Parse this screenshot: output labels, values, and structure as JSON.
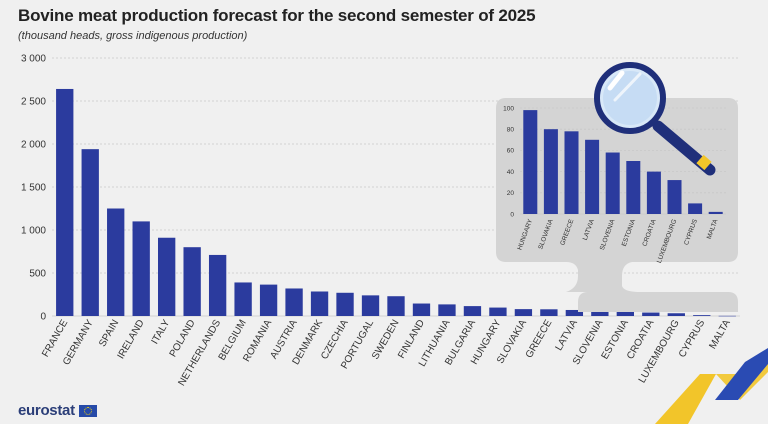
{
  "title": "Bovine meat production forecast for the second semester of 2025",
  "subtitle": "(thousand heads, gross indigenous production)",
  "brand": "eurostat",
  "colors": {
    "bar": "#2b3b9e",
    "background": "#f0f0f0",
    "grid": "#c8c8c8",
    "inset_panel": "#d4d4d4",
    "accent_yellow": "#f2c52a",
    "accent_blue": "#2a4bb3"
  },
  "chart_data": [
    {
      "type": "bar",
      "categories": [
        "FRANCE",
        "GERMANY",
        "SPAIN",
        "IRELAND",
        "ITALY",
        "POLAND",
        "NETHERLANDS",
        "BELGIUM",
        "ROMANIA",
        "AUSTRIA",
        "DENMARK",
        "CZECHIA",
        "PORTUGAL",
        "SWEDEN",
        "FINLAND",
        "LITHUANIA",
        "BULGARIA",
        "HUNGARY",
        "SLOVAKIA",
        "GREECE",
        "LATVIA",
        "SLOVENIA",
        "ESTONIA",
        "CROATIA",
        "LUXEMBOURG",
        "CYPRUS",
        "MALTA"
      ],
      "values": [
        2640,
        1940,
        1250,
        1100,
        910,
        800,
        710,
        390,
        365,
        320,
        285,
        270,
        240,
        230,
        145,
        135,
        115,
        98,
        80,
        78,
        70,
        58,
        50,
        40,
        32,
        10,
        2
      ],
      "ylim": [
        0,
        3000
      ],
      "yticks": [
        0,
        500,
        1000,
        1500,
        2000,
        2500,
        3000
      ],
      "ytick_labels": [
        "0",
        "500",
        "1 000",
        "1 500",
        "2 000",
        "2 500",
        "3 000"
      ],
      "grid": true
    },
    {
      "type": "bar",
      "categories": [
        "HUNGARY",
        "SLOVAKIA",
        "GREECE",
        "LATVIA",
        "SLOVENIA",
        "ESTONIA",
        "CROATIA",
        "LUXEMBOURG",
        "CYPRUS",
        "MALTA"
      ],
      "values": [
        98,
        80,
        78,
        70,
        58,
        50,
        40,
        32,
        10,
        2
      ],
      "ylim": [
        0,
        100
      ],
      "yticks": [
        0,
        20,
        40,
        60,
        80,
        100
      ],
      "ytick_labels": [
        "0",
        "20",
        "40",
        "60",
        "80",
        "100"
      ],
      "grid": true
    }
  ]
}
